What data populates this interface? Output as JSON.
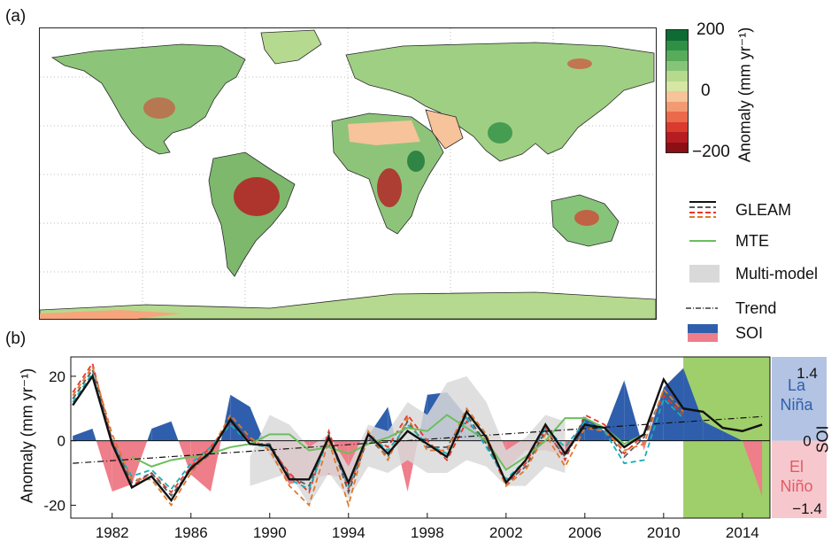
{
  "panels": {
    "a": "(a)",
    "b": "(b)"
  },
  "colorbar": {
    "title": "Anomaly (mm yr⁻¹)",
    "ticks": [
      "200",
      "0",
      "−200"
    ],
    "colors": [
      "#0f6b34",
      "#2f8f45",
      "#57ab5a",
      "#86c47a",
      "#b6d98e",
      "#d6e6a3",
      "#f6c39a",
      "#f39a72",
      "#ec6a4c",
      "#d93b2f",
      "#b51d22",
      "#8b0f14"
    ]
  },
  "legend": {
    "gleam": "GLEAM",
    "mte": "MTE",
    "multimodel": "Multi-model",
    "trend": "Trend",
    "soi": "SOI"
  },
  "phase_labels": {
    "la_nina": [
      "La",
      "Niña"
    ],
    "el_nino": [
      "El",
      "Niño"
    ]
  },
  "chart_data": {
    "type": "line",
    "xlabel": "",
    "ylabel": "Anomaly (mm yr⁻¹)",
    "y2label": "SOI",
    "xlim": [
      1979.9,
      2015.4
    ],
    "ylim": [
      -24,
      26
    ],
    "y2lim": [
      -1.4,
      1.4
    ],
    "x_ticks": [
      1982,
      1986,
      1990,
      1994,
      1998,
      2002,
      2006,
      2010,
      2014
    ],
    "y_ticks": [
      20,
      0,
      -20
    ],
    "y2_ticks": [
      "1.4",
      "0",
      "−1.4"
    ],
    "highlight_range": [
      2011,
      2015.4
    ],
    "x": [
      1980,
      1981,
      1982,
      1983,
      1984,
      1985,
      1986,
      1987,
      1988,
      1989,
      1990,
      1991,
      1992,
      1993,
      1994,
      1995,
      1996,
      1997,
      1998,
      1999,
      2000,
      2001,
      2002,
      2003,
      2004,
      2005,
      2006,
      2007,
      2008,
      2009,
      2010,
      2011,
      2012,
      2013,
      2014,
      2015
    ],
    "series": [
      {
        "name": "GLEAM",
        "values": [
          11,
          20,
          -1,
          -14.5,
          -11,
          -18.5,
          -8.5,
          -3.5,
          6.5,
          -1,
          -1.5,
          -12,
          -12,
          1,
          -13,
          2,
          -4,
          3,
          -1,
          -5,
          9,
          1,
          -13,
          -6,
          5,
          -4,
          5,
          4,
          -2,
          2,
          19,
          10,
          9,
          4,
          3,
          5
        ]
      },
      {
        "name": "GLEAM-1",
        "values": [
          15,
          24,
          0,
          -14,
          -10,
          -16,
          -8,
          -2,
          6,
          0,
          -2,
          -10,
          -16,
          3,
          -15,
          2,
          -2,
          8,
          0,
          -6,
          6,
          0,
          -14,
          -7,
          4,
          -6,
          8,
          5,
          -4,
          2,
          14,
          8,
          null,
          null,
          null,
          null
        ]
      },
      {
        "name": "GLEAM-2",
        "values": [
          13,
          22,
          0,
          -13,
          -10,
          -17,
          -9,
          -4,
          7,
          -1,
          -1,
          -11,
          -14,
          2,
          -16,
          1,
          -5,
          6,
          -2,
          -2,
          8,
          -1,
          -13,
          -8,
          3,
          -5,
          7,
          4,
          -5,
          1,
          15,
          8,
          null,
          null,
          null,
          null
        ]
      },
      {
        "name": "GLEAM-3",
        "values": [
          14,
          23,
          2,
          -12,
          -12,
          -20,
          -10,
          -3,
          8,
          1,
          -3,
          -14,
          -20,
          0,
          -20,
          3,
          -6,
          7,
          -3,
          -3,
          10,
          2,
          -14,
          -9,
          2,
          -8,
          4,
          3,
          -3,
          -1,
          16,
          9,
          null,
          null,
          null,
          null
        ]
      },
      {
        "name": "GLEAM-4",
        "values": [
          12,
          21,
          -1,
          -11,
          -9,
          -15,
          -7,
          -2,
          5,
          -1,
          -2,
          -12,
          -15,
          1,
          -14,
          2,
          -3,
          5,
          -1,
          -4,
          7,
          -2,
          -12,
          -6,
          4,
          -2,
          6,
          3,
          -7,
          -6,
          13,
          7,
          null,
          null,
          null,
          null
        ]
      },
      {
        "name": "MTE",
        "values": [
          null,
          null,
          null,
          -5,
          -8,
          -6,
          -5,
          -4,
          -2,
          -1,
          2,
          2,
          -3,
          -2,
          -4,
          -1,
          1,
          4,
          3,
          8,
          4,
          0,
          -9,
          -5,
          0,
          7,
          7,
          4,
          -1,
          2,
          null,
          null,
          null,
          null,
          null,
          null
        ]
      },
      {
        "name": "Multi-model upper",
        "values": [
          null,
          null,
          null,
          null,
          null,
          null,
          null,
          null,
          null,
          -5,
          8,
          5,
          -2,
          2,
          -8,
          5,
          3,
          12,
          8,
          18,
          20,
          12,
          -3,
          1,
          8,
          6,
          null,
          null,
          null,
          null,
          null,
          null,
          null,
          null,
          null,
          null
        ]
      },
      {
        "name": "Multi-model lower",
        "values": [
          null,
          null,
          null,
          null,
          null,
          null,
          null,
          null,
          null,
          -14,
          -12,
          -10,
          -20,
          -10,
          -18,
          -8,
          -10,
          -6,
          -10,
          -10,
          -6,
          -8,
          -14,
          -14,
          -8,
          -10,
          null,
          null,
          null,
          null,
          null,
          null,
          null,
          null,
          null,
          null
        ]
      },
      {
        "name": "Trend",
        "values": [
          -7,
          null,
          null,
          null,
          null,
          null,
          null,
          null,
          null,
          null,
          null,
          null,
          null,
          null,
          null,
          null,
          null,
          null,
          null,
          null,
          null,
          null,
          null,
          null,
          null,
          null,
          null,
          null,
          null,
          null,
          null,
          null,
          null,
          null,
          null,
          7.5
        ]
      },
      {
        "name": "SOI",
        "values": [
          0.1,
          0.25,
          -1.05,
          -0.9,
          0.25,
          0.4,
          -0.7,
          -1.05,
          0.95,
          0.7,
          -0.3,
          -0.9,
          -0.8,
          -0.7,
          -0.8,
          0.1,
          0.7,
          -1.05,
          0.95,
          1.0,
          0.5,
          -0.1,
          -0.6,
          -0.2,
          -0.2,
          -0.3,
          0.5,
          0.2,
          1.25,
          -0.2,
          1.1,
          1.5,
          0.4,
          0.2,
          0.0,
          -1.15
        ]
      }
    ],
    "colors": {
      "gleam": "#111111",
      "gleam_ensemble": [
        "#e8382c",
        "#5a5a5a",
        "#e0782a",
        "#16aeb8"
      ],
      "mte": "#6cbf5c",
      "multimodel": "#d9d9d9",
      "soi_positive": "#2f5fac",
      "soi_negative": "#ee7e8a",
      "highlight": "#9fcf6a",
      "la_nina_band": "#b3c3e3",
      "el_nino_band": "#f6c8cd"
    }
  }
}
